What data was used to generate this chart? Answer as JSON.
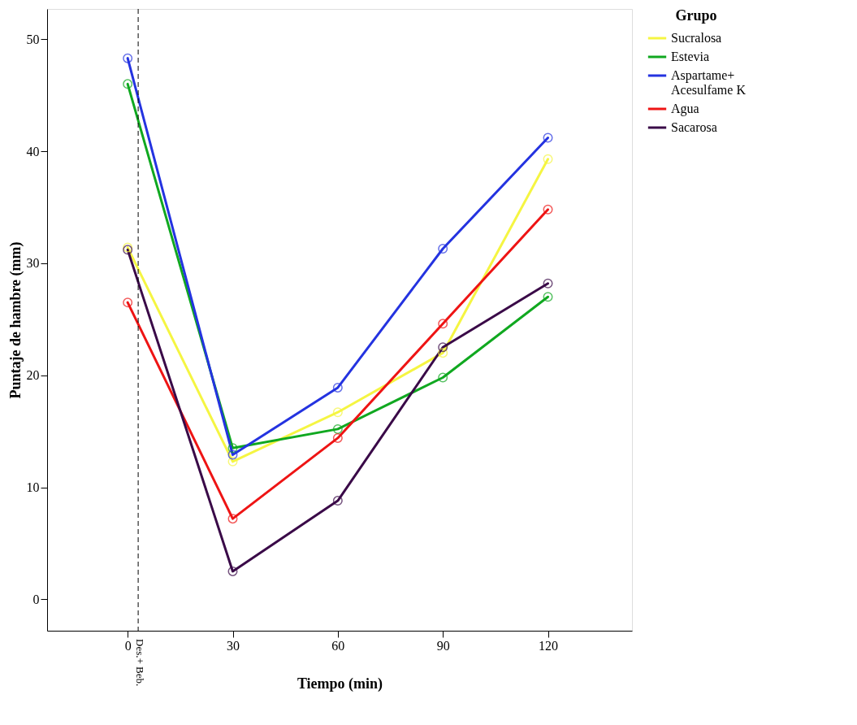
{
  "chart_data": {
    "type": "line",
    "xlabel": "Tiempo (min)",
    "ylabel": "Puntaje de hambre (mm)",
    "legend_title": "Grupo",
    "x": [
      0,
      30,
      60,
      90,
      120
    ],
    "series": [
      {
        "name": "Sucralosa",
        "color": "#f5f542",
        "values": [
          31.4,
          12.3,
          16.7,
          22.0,
          39.3
        ]
      },
      {
        "name": "Estevia",
        "color": "#10a820",
        "values": [
          46.0,
          13.5,
          15.2,
          19.8,
          27.0
        ]
      },
      {
        "name": "Aspartame+\nAcesulfame K",
        "color": "#2433e0",
        "values": [
          48.3,
          12.9,
          18.9,
          31.3,
          41.2
        ]
      },
      {
        "name": "Agua",
        "color": "#ee1414",
        "values": [
          26.5,
          7.2,
          14.4,
          24.6,
          34.8
        ]
      },
      {
        "name": "Sacarosa",
        "color": "#3a0a48",
        "values": [
          31.2,
          2.5,
          8.8,
          22.5,
          28.2
        ]
      }
    ],
    "xlim": [
      -23,
      144
    ],
    "ylim": [
      -2.8,
      52.7
    ],
    "xticks": [
      0,
      30,
      60,
      90,
      120
    ],
    "yticks": [
      0,
      10,
      20,
      30,
      40,
      50
    ],
    "ref_lines": [
      {
        "axis": "x",
        "value": 3,
        "label": "Des.+ Beb.",
        "color": "#000000",
        "line_style": "dashed"
      }
    ],
    "grid": false,
    "legend": "top right",
    "marker": "circle",
    "line_style": "solid"
  }
}
